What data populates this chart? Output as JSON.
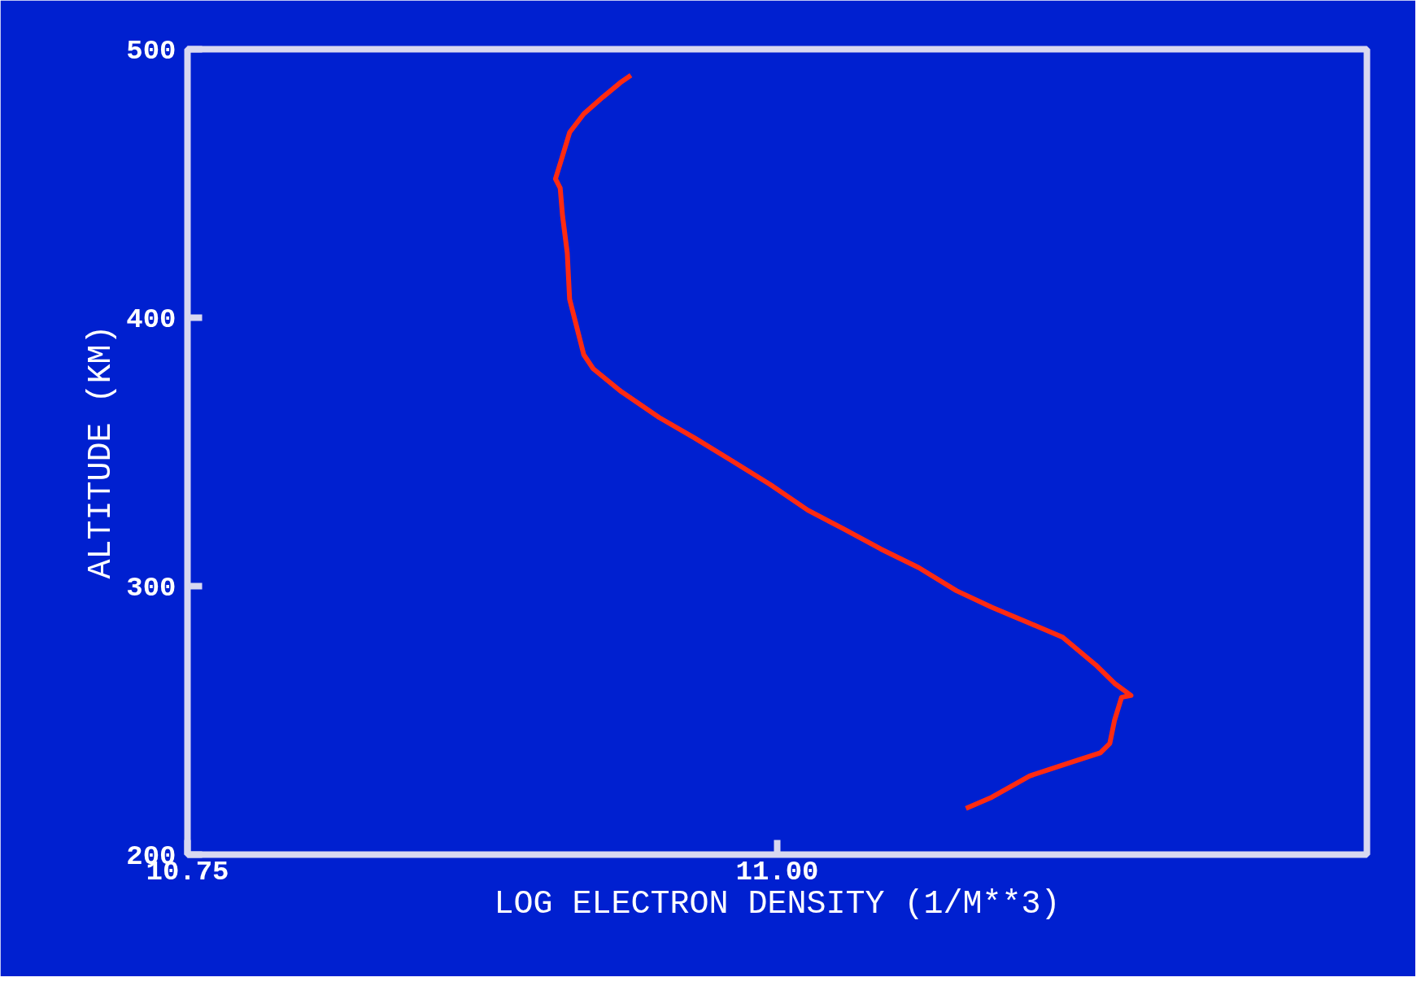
{
  "chart_data": {
    "type": "line",
    "xlabel": "LOG ELECTRON DENSITY (1/M**3)",
    "ylabel": "ALTITUDE (KM)",
    "xlim": [
      10.75,
      11.25
    ],
    "ylim": [
      200,
      500
    ],
    "xticks": [
      10.75,
      {
        "value": 11,
        "label": "11.00"
      }
    ],
    "yticks": [
      200,
      300,
      400,
      500
    ],
    "grid": false,
    "marker": "none",
    "line_style": "solid",
    "series": [
      {
        "color": "#ff2a10",
        "x": [
          11.08,
          11.091,
          11.107,
          11.125,
          11.137,
          11.141,
          11.143,
          11.146,
          11.15,
          11.143,
          11.135,
          11.121,
          11.107,
          11.091,
          11.076,
          11.06,
          11.044,
          11.028,
          11.013,
          10.997,
          10.981,
          10.965,
          10.95,
          10.934,
          10.922,
          10.918,
          10.915,
          10.912,
          10.911,
          10.909,
          10.908,
          10.906,
          10.909,
          10.912,
          10.918,
          10.926,
          10.934,
          10.938
        ],
        "values": [
          217.2,
          221.4,
          229.3,
          234.5,
          237.9,
          241.4,
          250,
          258.6,
          259.3,
          263.8,
          270.7,
          281,
          286.2,
          292.1,
          298.3,
          306.9,
          313.8,
          321.4,
          328.3,
          337.9,
          346.6,
          355.2,
          362.8,
          372.4,
          381,
          386.2,
          396.6,
          406.9,
          424.1,
          437.9,
          448.3,
          451.7,
          460.3,
          469,
          475.9,
          482.1,
          487.9,
          490.3
        ]
      }
    ]
  }
}
